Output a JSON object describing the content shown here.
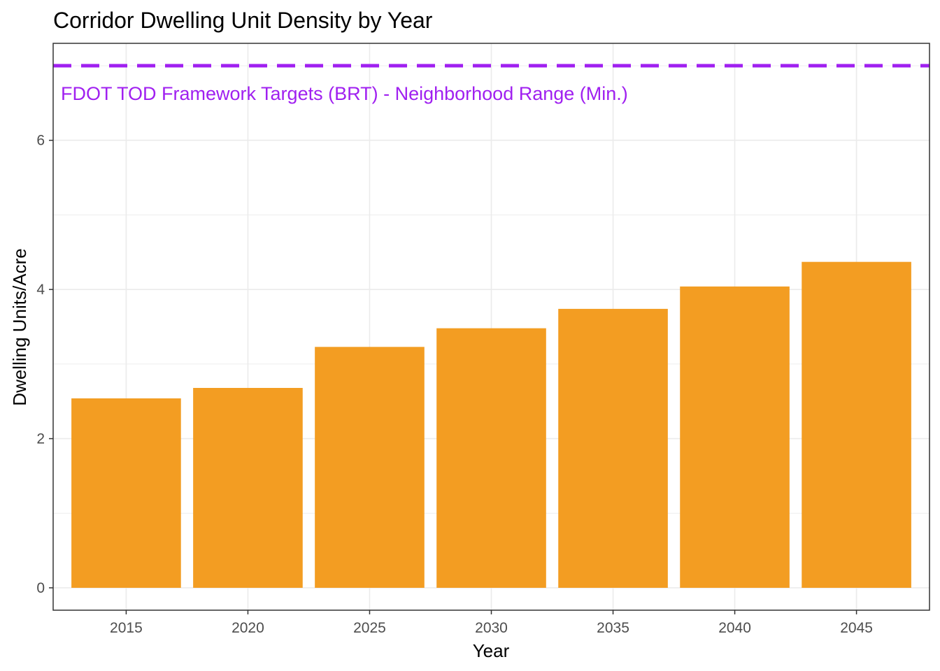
{
  "chart_data": {
    "type": "bar",
    "title": "Corridor Dwelling Unit Density by Year",
    "xlabel": "Year",
    "ylabel": "Dwelling Units/Acre",
    "categories": [
      "2015",
      "2020",
      "2025",
      "2030",
      "2035",
      "2040",
      "2045"
    ],
    "values": [
      2.54,
      2.68,
      3.23,
      3.48,
      3.74,
      4.04,
      4.37
    ],
    "ylim": [
      -0.3,
      7.3
    ],
    "yticks": [
      0,
      2,
      4,
      6
    ],
    "grid": true,
    "bar_color": "#F39D22",
    "reference_line": {
      "value": 7,
      "style": "dashed",
      "color": "#A020F0",
      "label": "FDOT TOD Framework Targets (BRT) - Neighborhood Range (Min.)"
    }
  }
}
